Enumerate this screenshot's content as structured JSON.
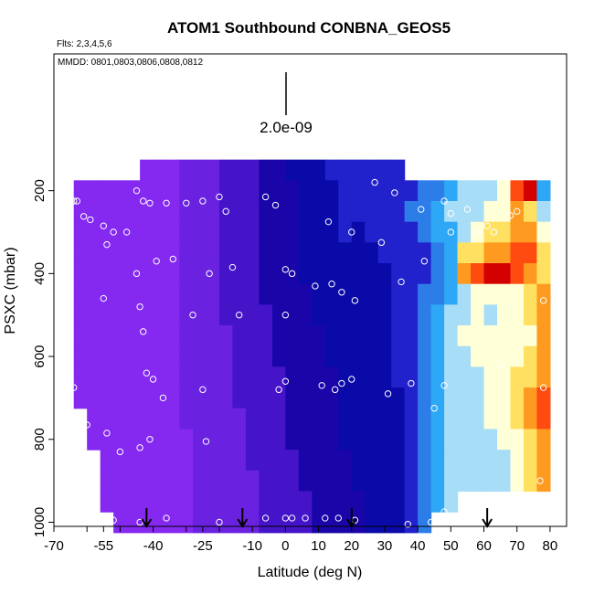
{
  "chart_data": {
    "type": "heatmap",
    "title": "ATOM1 Southbound CONBNA_GEOS5",
    "annotations": {
      "flights": "Flts: 2,3,4,5,6",
      "dates": "MMDD: 0801,0803,0806,0808,0812",
      "scale_label": "2.0e-09"
    },
    "xlabel": "Latitude (deg N)",
    "ylabel": "PSXC (mbar)",
    "xlim": [
      -70,
      85
    ],
    "ylim": [
      1010,
      -130
    ],
    "x_ticks": [
      -70,
      -60,
      -55,
      -50,
      -40,
      -30,
      -25,
      -20,
      -10,
      0,
      10,
      20,
      30,
      40,
      50,
      60,
      70,
      80
    ],
    "x_tick_labels": [
      "-70",
      "-55",
      "-40",
      "-25",
      "-10",
      "0",
      "10",
      "20",
      "30",
      "40",
      "50",
      "60",
      "70",
      "80"
    ],
    "x_tick_label_values": [
      -70,
      -55,
      -40,
      -25,
      -10,
      0,
      10,
      20,
      30,
      40,
      50,
      60,
      70,
      80
    ],
    "y_ticks": [
      200,
      400,
      600,
      800,
      1000
    ],
    "y_tick_labels": [
      "200",
      "400",
      "600",
      "800",
      "1000"
    ],
    "grid": false,
    "color_scale": [
      "#8528f0",
      "#6a22e0",
      "#4514c8",
      "#1a06a8",
      "#0a0aa8",
      "#2222cc",
      "#2d7de8",
      "#2ea8f6",
      "#a7ddf7",
      "#ffffd8",
      "#ffe060",
      "#ff9a20",
      "#ff4a10",
      "#d40000"
    ],
    "lat_bins": [
      -62,
      -58,
      -54,
      -50,
      -46,
      -42,
      -38,
      -34,
      -30,
      -26,
      -22,
      -18,
      -14,
      -10,
      -6,
      -2,
      2,
      6,
      10,
      14,
      18,
      22,
      26,
      30,
      34,
      38,
      42,
      46,
      50,
      54,
      58,
      62,
      66,
      70,
      74,
      78
    ],
    "pressure_bins": [
      150,
      200,
      250,
      300,
      350,
      400,
      450,
      500,
      550,
      600,
      650,
      700,
      750,
      800,
      850,
      900,
      950,
      1000
    ],
    "field_note": "values are color-index (0=low purple, 13=high dark red)",
    "values": [
      [
        -1,
        -1,
        -1,
        -1,
        -1,
        0,
        0,
        0,
        1,
        1,
        1,
        2,
        2,
        2,
        3,
        3,
        4,
        4,
        4,
        5,
        5,
        5,
        5,
        5,
        5,
        -1,
        -1,
        -1,
        -1,
        -1,
        -1,
        -1,
        -1,
        -1,
        -1,
        -1
      ],
      [
        0,
        0,
        0,
        0,
        0,
        0,
        0,
        0,
        1,
        1,
        1,
        2,
        2,
        2,
        3,
        3,
        3,
        4,
        4,
        4,
        5,
        5,
        5,
        5,
        5,
        5,
        6,
        6,
        7,
        8,
        8,
        8,
        9,
        12,
        13,
        7
      ],
      [
        0,
        0,
        0,
        0,
        0,
        0,
        0,
        0,
        1,
        1,
        1,
        2,
        2,
        2,
        3,
        3,
        3,
        4,
        4,
        4,
        5,
        5,
        5,
        5,
        5,
        6,
        6,
        7,
        8,
        8,
        8,
        9,
        9,
        11,
        10,
        8
      ],
      [
        0,
        0,
        0,
        0,
        0,
        0,
        0,
        0,
        1,
        1,
        1,
        2,
        2,
        2,
        3,
        3,
        3,
        4,
        4,
        4,
        5,
        4,
        5,
        5,
        5,
        5,
        6,
        7,
        7,
        8,
        9,
        10,
        10,
        11,
        11,
        9
      ],
      [
        0,
        0,
        0,
        0,
        0,
        0,
        0,
        0,
        1,
        1,
        1,
        2,
        2,
        2,
        3,
        3,
        3,
        4,
        4,
        4,
        4,
        4,
        4,
        5,
        5,
        5,
        5,
        6,
        7,
        10,
        10,
        11,
        11,
        12,
        12,
        10
      ],
      [
        0,
        0,
        0,
        0,
        0,
        0,
        0,
        0,
        1,
        1,
        1,
        2,
        2,
        2,
        3,
        3,
        3,
        4,
        4,
        4,
        4,
        4,
        4,
        4,
        5,
        5,
        5,
        6,
        7,
        11,
        12,
        13,
        13,
        12,
        11,
        10
      ],
      [
        0,
        0,
        0,
        0,
        0,
        0,
        0,
        0,
        1,
        1,
        1,
        2,
        2,
        2,
        3,
        3,
        3,
        3,
        4,
        4,
        4,
        4,
        4,
        4,
        5,
        5,
        6,
        6,
        7,
        8,
        9,
        9,
        9,
        9,
        10,
        11
      ],
      [
        0,
        0,
        0,
        0,
        0,
        0,
        0,
        0,
        1,
        1,
        1,
        2,
        2,
        2,
        2,
        3,
        3,
        3,
        4,
        4,
        4,
        4,
        4,
        4,
        5,
        5,
        6,
        7,
        8,
        8,
        9,
        8,
        9,
        9,
        10,
        11
      ],
      [
        0,
        0,
        0,
        0,
        0,
        0,
        0,
        0,
        1,
        1,
        1,
        1,
        2,
        2,
        2,
        3,
        3,
        3,
        3,
        4,
        4,
        4,
        4,
        4,
        5,
        5,
        6,
        7,
        8,
        9,
        9,
        9,
        9,
        9,
        9,
        11
      ],
      [
        0,
        0,
        0,
        0,
        0,
        0,
        0,
        0,
        1,
        1,
        1,
        1,
        2,
        2,
        2,
        3,
        3,
        3,
        3,
        4,
        4,
        4,
        4,
        4,
        5,
        5,
        6,
        7,
        8,
        8,
        9,
        9,
        9,
        9,
        10,
        11
      ],
      [
        0,
        0,
        0,
        0,
        0,
        0,
        0,
        0,
        1,
        1,
        1,
        1,
        2,
        2,
        2,
        2,
        3,
        3,
        3,
        3,
        4,
        4,
        4,
        4,
        5,
        5,
        6,
        7,
        8,
        8,
        8,
        9,
        9,
        10,
        10,
        11
      ],
      [
        0,
        0,
        0,
        0,
        0,
        0,
        0,
        0,
        1,
        1,
        1,
        1,
        2,
        2,
        2,
        2,
        3,
        3,
        3,
        3,
        4,
        4,
        4,
        4,
        4,
        5,
        6,
        7,
        8,
        8,
        8,
        9,
        9,
        10,
        11,
        12
      ],
      [
        -1,
        0,
        0,
        0,
        0,
        0,
        0,
        0,
        1,
        1,
        1,
        1,
        1,
        2,
        2,
        2,
        3,
        3,
        3,
        3,
        4,
        4,
        4,
        4,
        4,
        5,
        6,
        7,
        8,
        8,
        8,
        9,
        9,
        10,
        11,
        12
      ],
      [
        -1,
        0,
        0,
        0,
        0,
        0,
        0,
        0,
        0,
        1,
        1,
        1,
        1,
        2,
        2,
        2,
        3,
        3,
        3,
        3,
        4,
        4,
        4,
        4,
        4,
        5,
        6,
        7,
        8,
        8,
        8,
        8,
        9,
        9,
        10,
        11
      ],
      [
        -1,
        -1,
        0,
        0,
        0,
        0,
        0,
        0,
        0,
        1,
        1,
        1,
        1,
        2,
        2,
        2,
        2,
        3,
        3,
        3,
        3,
        4,
        4,
        4,
        4,
        5,
        6,
        7,
        8,
        8,
        8,
        8,
        8,
        9,
        10,
        11
      ],
      [
        -1,
        -1,
        0,
        0,
        0,
        0,
        0,
        0,
        0,
        1,
        1,
        1,
        1,
        1,
        2,
        2,
        2,
        3,
        3,
        3,
        3,
        4,
        4,
        4,
        4,
        5,
        6,
        7,
        8,
        8,
        8,
        8,
        8,
        9,
        10,
        11
      ],
      [
        -1,
        -1,
        0,
        0,
        0,
        0,
        0,
        0,
        0,
        1,
        1,
        1,
        1,
        1,
        2,
        2,
        2,
        2,
        3,
        3,
        3,
        3,
        4,
        4,
        4,
        5,
        6,
        7,
        8,
        -1,
        -1,
        -1,
        -1,
        -1,
        -1,
        -1
      ],
      [
        -1,
        -1,
        -1,
        0,
        0,
        0,
        0,
        0,
        0,
        1,
        1,
        1,
        1,
        1,
        2,
        2,
        2,
        2,
        3,
        3,
        3,
        3,
        4,
        4,
        4,
        5,
        6,
        -1,
        -1,
        -1,
        -1,
        -1,
        -1,
        -1,
        -1,
        -1
      ]
    ],
    "series": [
      {
        "name": "",
        "points": [
          [
            -64,
            225
          ],
          [
            -63,
            225
          ],
          [
            -61,
            262
          ],
          [
            -59,
            270
          ],
          [
            -55,
            285
          ],
          [
            -54,
            330
          ],
          [
            -52,
            300
          ],
          [
            -48,
            300
          ],
          [
            -45,
            200
          ],
          [
            -43,
            225
          ],
          [
            -41,
            230
          ],
          [
            -39,
            370
          ],
          [
            -36,
            230
          ],
          [
            -34,
            365
          ],
          [
            -30,
            230
          ],
          [
            -25,
            225
          ],
          [
            -23,
            400
          ],
          [
            -20,
            215
          ],
          [
            -18,
            250
          ],
          [
            -16,
            385
          ],
          [
            -6,
            215
          ],
          [
            -3,
            235
          ],
          [
            0,
            390
          ],
          [
            2,
            400
          ],
          [
            9,
            430
          ],
          [
            13,
            275
          ],
          [
            14,
            425
          ],
          [
            17,
            445
          ],
          [
            20,
            300
          ],
          [
            21,
            465
          ],
          [
            27,
            180
          ],
          [
            29,
            325
          ],
          [
            33,
            205
          ],
          [
            35,
            420
          ],
          [
            41,
            245
          ],
          [
            42,
            370
          ],
          [
            48,
            225
          ],
          [
            50,
            255
          ],
          [
            50,
            300
          ],
          [
            55,
            245
          ],
          [
            58,
            300
          ],
          [
            61,
            285
          ],
          [
            63,
            300
          ],
          [
            68,
            260
          ],
          [
            70,
            250
          ],
          [
            78,
            465
          ],
          [
            -55,
            460
          ],
          [
            -45,
            400
          ],
          [
            -44,
            480
          ],
          [
            -43,
            540
          ],
          [
            -42,
            640
          ],
          [
            -40,
            655
          ],
          [
            -37,
            700
          ],
          [
            -25,
            680
          ],
          [
            -28,
            500
          ],
          [
            -14,
            500
          ],
          [
            0,
            500
          ],
          [
            -64,
            675
          ],
          [
            -60,
            765
          ],
          [
            -54,
            785
          ],
          [
            -50,
            830
          ],
          [
            -44,
            820
          ],
          [
            -41,
            800
          ],
          [
            -24,
            805
          ],
          [
            -2,
            680
          ],
          [
            0,
            660
          ],
          [
            11,
            670
          ],
          [
            15,
            680
          ],
          [
            17,
            665
          ],
          [
            20,
            655
          ],
          [
            31,
            690
          ],
          [
            38,
            665
          ],
          [
            45,
            725
          ],
          [
            48,
            670
          ],
          [
            65,
            620
          ],
          [
            78,
            675
          ],
          [
            77,
            900
          ],
          [
            -56,
            990
          ],
          [
            -52,
            995
          ],
          [
            -44,
            1000
          ],
          [
            -36,
            990
          ],
          [
            -20,
            1000
          ],
          [
            -6,
            990
          ],
          [
            0,
            990
          ],
          [
            2,
            990
          ],
          [
            6,
            990
          ],
          [
            12,
            990
          ],
          [
            16,
            990
          ],
          [
            21,
            995
          ],
          [
            37,
            1005
          ],
          [
            44,
            1000
          ],
          [
            48,
            975
          ]
        ]
      }
    ],
    "markers": {
      "arrow_latitudes": [
        -42,
        -13,
        20,
        61
      ]
    }
  }
}
